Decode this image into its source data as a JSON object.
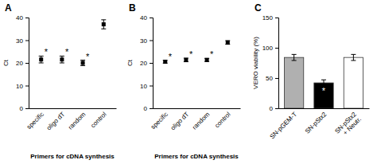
{
  "chart_data": [
    {
      "type": "scatter",
      "title": "A",
      "xlabel": "Primers for cDNA synthesis",
      "ylabel": "Ct",
      "categories": [
        "specific",
        "oligo dT",
        "random",
        "control"
      ],
      "values": [
        21.5,
        21.5,
        20.0,
        37.0
      ],
      "errors": [
        1.5,
        1.5,
        1.2,
        2.0
      ],
      "annotations": [
        "*",
        "*",
        "*",
        null
      ],
      "color": "#000000",
      "marker": "square",
      "ylim": [
        0,
        40
      ],
      "yticks": [
        0,
        10,
        20,
        30,
        40
      ]
    },
    {
      "type": "scatter",
      "title": "B",
      "xlabel": "Primers for cDNA synthesis",
      "ylabel": "Ct",
      "categories": [
        "specific",
        "oligo dT",
        "random",
        "control"
      ],
      "values": [
        20.5,
        21.3,
        21.3,
        29.0
      ],
      "errors": [
        0.6,
        0.8,
        0.7,
        0.8
      ],
      "annotations": [
        "*",
        "*",
        "*",
        null
      ],
      "color": "#000000",
      "marker": "square",
      "ylim": [
        0,
        40
      ],
      "yticks": [
        0,
        10,
        20,
        30,
        40
      ]
    },
    {
      "type": "bar",
      "title": "C",
      "ylabel": "VERO viability (%)",
      "categories": [
        "SN-pGEM-T",
        "SN-pStx2",
        "SN-pStx2\n+ Neutr."
      ],
      "values": [
        84.0,
        42.0,
        84.0
      ],
      "errors": [
        5.0,
        5.0,
        5.0
      ],
      "annotations": [
        null,
        "*",
        null
      ],
      "colors": [
        "#b0b0b0",
        "#000000",
        "#ffffff"
      ],
      "ylim": [
        0,
        150
      ],
      "yticks": [
        0,
        50,
        100,
        150
      ]
    }
  ]
}
